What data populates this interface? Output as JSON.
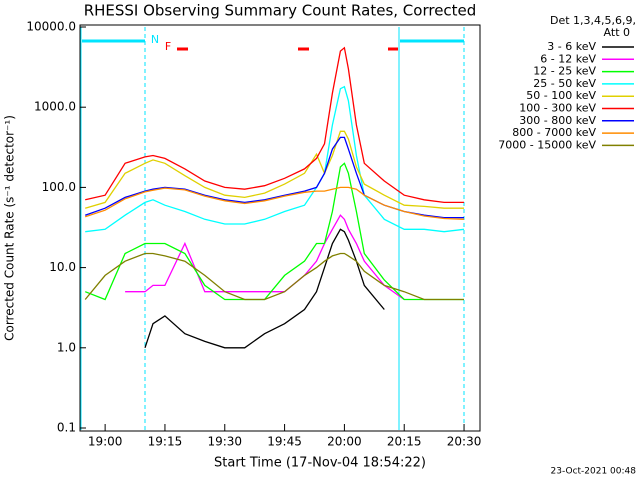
{
  "chart_data": {
    "type": "line",
    "title": "RHESSI Observing Summary Count Rates, Corrected",
    "x_label": "Start Time (17-Nov-04 18:54:22)",
    "y_label": "Corrected Count Rate (s⁻¹ detector⁻¹)",
    "legend_header": [
      "Det 1,3,4,5,6,9,",
      "Att 0"
    ],
    "legend": "right",
    "annotations": [
      "N",
      "F"
    ],
    "footer": "23-Oct-2021 00:48",
    "log_y": true,
    "xlim": [
      1133.7,
      1234
    ],
    "ylim": [
      0.1,
      10000
    ],
    "xticks": [
      {
        "value": 1140,
        "label": "19:00"
      },
      {
        "value": 1155,
        "label": "19:15"
      },
      {
        "value": 1170,
        "label": "19:30"
      },
      {
        "value": 1185,
        "label": "19:45"
      },
      {
        "value": 1200,
        "label": "20:00"
      },
      {
        "value": 1215,
        "label": "20:15"
      },
      {
        "value": 1230,
        "label": "20:30"
      }
    ],
    "yticks": [
      {
        "value": 0.1,
        "label": "0.1"
      },
      {
        "value": 1,
        "label": "1.0"
      },
      {
        "value": 10,
        "label": "10.0"
      },
      {
        "value": 100,
        "label": "100.0"
      },
      {
        "value": 1000,
        "label": "1000.0"
      },
      {
        "value": 10000,
        "label": "10000.0"
      }
    ],
    "x": [
      1135,
      1140,
      1145,
      1150,
      1152,
      1155,
      1160,
      1165,
      1170,
      1175,
      1180,
      1185,
      1190,
      1193,
      1195,
      1197,
      1199,
      1200,
      1201,
      1203,
      1205,
      1210,
      1215,
      1220,
      1225,
      1230
    ],
    "series": [
      {
        "name": "3 - 6 keV",
        "color": "#000000",
        "values": [
          null,
          null,
          null,
          1,
          2,
          2.5,
          1.5,
          1.2,
          1,
          1,
          1.5,
          2,
          3,
          5,
          10,
          20,
          30,
          28,
          22,
          12,
          6,
          3,
          null,
          null,
          null,
          null
        ]
      },
      {
        "name": "6 - 12 keV",
        "color": "#ff00ff",
        "values": [
          null,
          null,
          5,
          5,
          6,
          6,
          20,
          5,
          5,
          5,
          5,
          5,
          8,
          12,
          20,
          30,
          45,
          40,
          30,
          20,
          12,
          6,
          4,
          null,
          null,
          null
        ]
      },
      {
        "name": "12 - 25 keV",
        "color": "#00ff00",
        "values": [
          5,
          4,
          15,
          20,
          20,
          20,
          15,
          6,
          4,
          4,
          4,
          8,
          12,
          20,
          20,
          50,
          180,
          200,
          150,
          50,
          15,
          7,
          4,
          4,
          4,
          4
        ]
      },
      {
        "name": "25 - 50 keV",
        "color": "#00ffff",
        "values": [
          28,
          30,
          45,
          65,
          70,
          60,
          50,
          40,
          35,
          35,
          40,
          50,
          60,
          100,
          150,
          600,
          1700,
          1800,
          1200,
          250,
          80,
          40,
          30,
          30,
          28,
          30
        ]
      },
      {
        "name": "50 - 100 keV",
        "color": "#e0d000",
        "values": [
          55,
          65,
          150,
          200,
          220,
          200,
          140,
          100,
          80,
          75,
          85,
          110,
          150,
          260,
          150,
          250,
          500,
          500,
          400,
          180,
          110,
          80,
          60,
          58,
          55,
          55
        ]
      },
      {
        "name": "100 - 300 keV",
        "color": "#ff0000",
        "values": [
          70,
          80,
          200,
          240,
          250,
          230,
          170,
          120,
          100,
          95,
          105,
          130,
          170,
          230,
          350,
          1500,
          5000,
          5500,
          3000,
          600,
          200,
          120,
          80,
          70,
          65,
          65
        ]
      },
      {
        "name": "300 - 800 keV",
        "color": "#0000ff",
        "values": [
          45,
          55,
          75,
          90,
          95,
          100,
          95,
          80,
          70,
          65,
          70,
          80,
          90,
          100,
          150,
          300,
          420,
          420,
          300,
          150,
          80,
          60,
          50,
          45,
          42,
          42
        ]
      },
      {
        "name": "800 - 7000 keV",
        "color": "#ff8c00",
        "values": [
          43,
          52,
          72,
          88,
          92,
          98,
          93,
          78,
          68,
          63,
          68,
          78,
          87,
          90,
          90,
          95,
          100,
          100,
          100,
          95,
          80,
          60,
          50,
          44,
          41,
          40
        ]
      },
      {
        "name": "7000 - 15000 keV",
        "color": "#808000",
        "values": [
          4,
          8,
          12,
          15,
          15,
          14,
          12,
          8,
          5,
          4,
          4,
          5,
          8,
          10,
          12,
          14,
          15,
          15,
          14,
          12,
          9,
          6,
          5,
          4,
          4,
          4
        ]
      }
    ]
  }
}
